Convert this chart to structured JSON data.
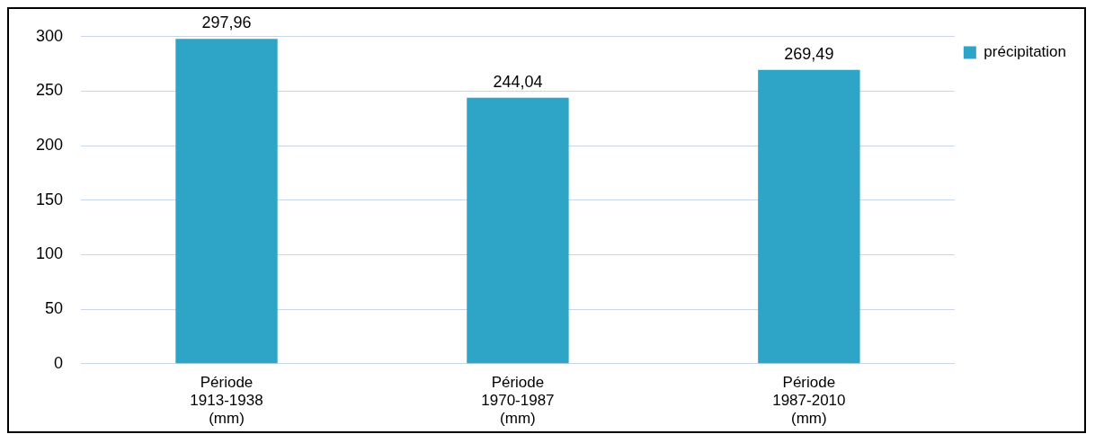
{
  "chart_data": {
    "type": "bar",
    "categories": [
      "Période\n1913-1938\n(mm)",
      "Période\n1970-1987\n(mm)",
      "Période\n1987-2010\n(mm)"
    ],
    "series": [
      {
        "name": "précipitation",
        "color": "#2ea5c6",
        "values": [
          297.96,
          244.04,
          269.49
        ],
        "value_labels": [
          "297,96",
          "244,04",
          "269,49"
        ]
      }
    ],
    "ylim": [
      0,
      300
    ],
    "yticks": [
      0,
      50,
      100,
      150,
      200,
      250,
      300
    ],
    "grid": "y",
    "legend": "top right"
  }
}
